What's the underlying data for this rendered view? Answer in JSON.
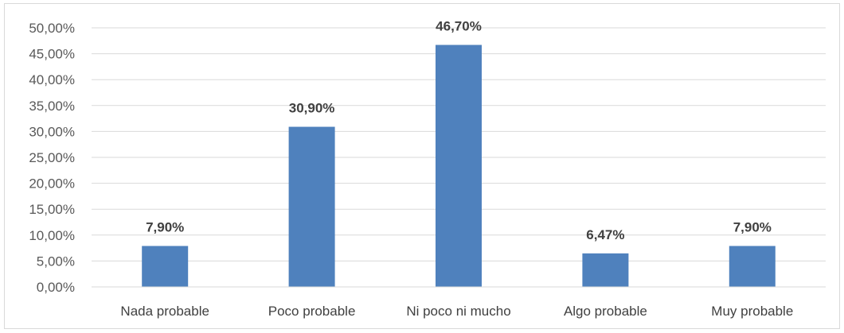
{
  "chart_data": {
    "type": "bar",
    "categories": [
      "Nada probable",
      "Poco probable",
      "Ni poco ni mucho",
      "Algo probable",
      "Muy probable"
    ],
    "values": [
      7.9,
      30.9,
      46.7,
      6.47,
      7.9
    ],
    "data_labels": [
      "7,90%",
      "30,90%",
      "46,70%",
      "6,47%",
      "7,90%"
    ],
    "y_ticks": [
      "0,00%",
      "5,00%",
      "10,00%",
      "15,00%",
      "20,00%",
      "25,00%",
      "30,00%",
      "35,00%",
      "40,00%",
      "45,00%",
      "50,00%"
    ],
    "ylim": [
      0,
      50
    ],
    "grid": true,
    "legend": "none",
    "bar_color": "#4f81bd",
    "grid_color": "#d9d9d9"
  }
}
